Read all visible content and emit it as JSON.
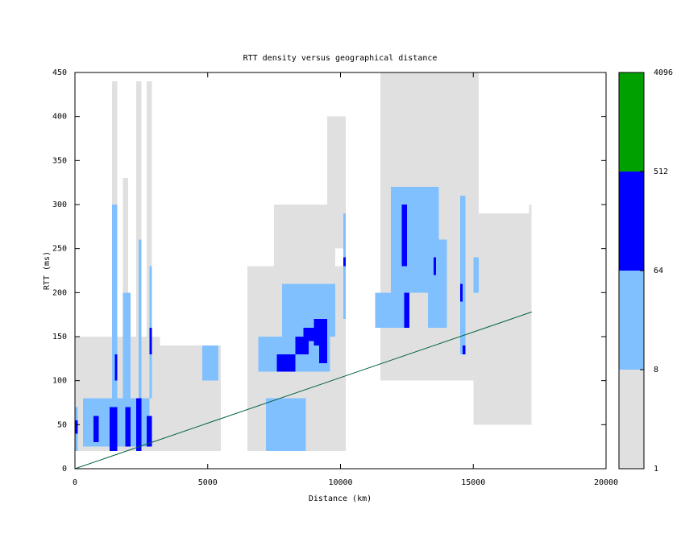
{
  "chart_data": {
    "type": "heatmap",
    "title": "RTT density versus geographical distance",
    "x_label": "Distance (km)",
    "y_label": "RTT (ms)",
    "xlim": [
      0,
      20000
    ],
    "xticks": [
      0,
      5000,
      10000,
      15000,
      20000
    ],
    "ylim": [
      0,
      450
    ],
    "yticks": [
      0,
      50,
      100,
      150,
      200,
      250,
      300,
      350,
      400,
      450
    ],
    "cells": [
      [
        0,
        3200,
        20,
        150,
        4
      ],
      [
        1400,
        1600,
        150,
        440,
        3
      ],
      [
        2300,
        2500,
        150,
        440,
        3
      ],
      [
        2700,
        2900,
        150,
        440,
        3
      ],
      [
        1800,
        2000,
        150,
        330,
        2
      ],
      [
        3000,
        5500,
        20,
        140,
        2
      ],
      [
        6500,
        10200,
        20,
        230,
        3
      ],
      [
        7500,
        9800,
        230,
        300,
        2
      ],
      [
        11500,
        15200,
        100,
        450,
        3
      ],
      [
        12100,
        13800,
        300,
        450,
        3
      ],
      [
        15000,
        17200,
        50,
        290,
        2
      ],
      [
        17100,
        17200,
        60,
        300,
        2
      ],
      [
        9500,
        10200,
        250,
        400,
        2
      ],
      [
        300,
        2800,
        25,
        80,
        20
      ],
      [
        1400,
        1600,
        80,
        300,
        15
      ],
      [
        2400,
        2500,
        80,
        260,
        12
      ],
      [
        2800,
        2900,
        80,
        230,
        10
      ],
      [
        1800,
        2100,
        80,
        200,
        10
      ],
      [
        4800,
        5400,
        100,
        140,
        15
      ],
      [
        6900,
        9600,
        110,
        150,
        30
      ],
      [
        7800,
        9800,
        150,
        210,
        25
      ],
      [
        7200,
        8700,
        20,
        80,
        12
      ],
      [
        12000,
        13700,
        200,
        320,
        20
      ],
      [
        13300,
        14000,
        160,
        260,
        15
      ],
      [
        14500,
        14700,
        130,
        310,
        12
      ],
      [
        10100,
        10200,
        170,
        290,
        12
      ],
      [
        11900,
        12200,
        200,
        320,
        12
      ],
      [
        15000,
        15200,
        200,
        240,
        10
      ],
      [
        11300,
        12600,
        160,
        200,
        10
      ],
      [
        -50,
        100,
        20,
        70,
        12
      ],
      [
        700,
        900,
        30,
        60,
        100
      ],
      [
        1300,
        1600,
        20,
        70,
        150
      ],
      [
        1500,
        1600,
        100,
        130,
        80
      ],
      [
        1900,
        2100,
        25,
        70,
        120
      ],
      [
        2300,
        2500,
        20,
        80,
        120
      ],
      [
        2700,
        2900,
        25,
        60,
        100
      ],
      [
        2800,
        2900,
        130,
        160,
        80
      ],
      [
        7600,
        8300,
        110,
        130,
        150
      ],
      [
        8300,
        8800,
        130,
        150,
        100
      ],
      [
        9000,
        9500,
        140,
        170,
        150
      ],
      [
        9200,
        9500,
        120,
        140,
        80
      ],
      [
        8600,
        9000,
        145,
        160,
        80
      ],
      [
        12300,
        12500,
        230,
        300,
        80
      ],
      [
        12400,
        12600,
        160,
        200,
        70
      ],
      [
        13500,
        13600,
        220,
        240,
        70
      ],
      [
        14500,
        14600,
        190,
        210,
        70
      ],
      [
        14600,
        14700,
        130,
        140,
        70
      ],
      [
        10100,
        10200,
        230,
        240,
        70
      ],
      [
        0,
        100,
        40,
        55,
        80
      ]
    ],
    "reference_line": {
      "x": [
        0,
        17200
      ],
      "y": [
        0,
        178
      ],
      "color": "#006040"
    },
    "colorbar": {
      "log_base": 2,
      "ticks": [
        1,
        8,
        64,
        512,
        4096
      ],
      "colors": [
        "#e0e0e0",
        "#80c0ff",
        "#0000ff",
        "#00a000"
      ]
    }
  }
}
